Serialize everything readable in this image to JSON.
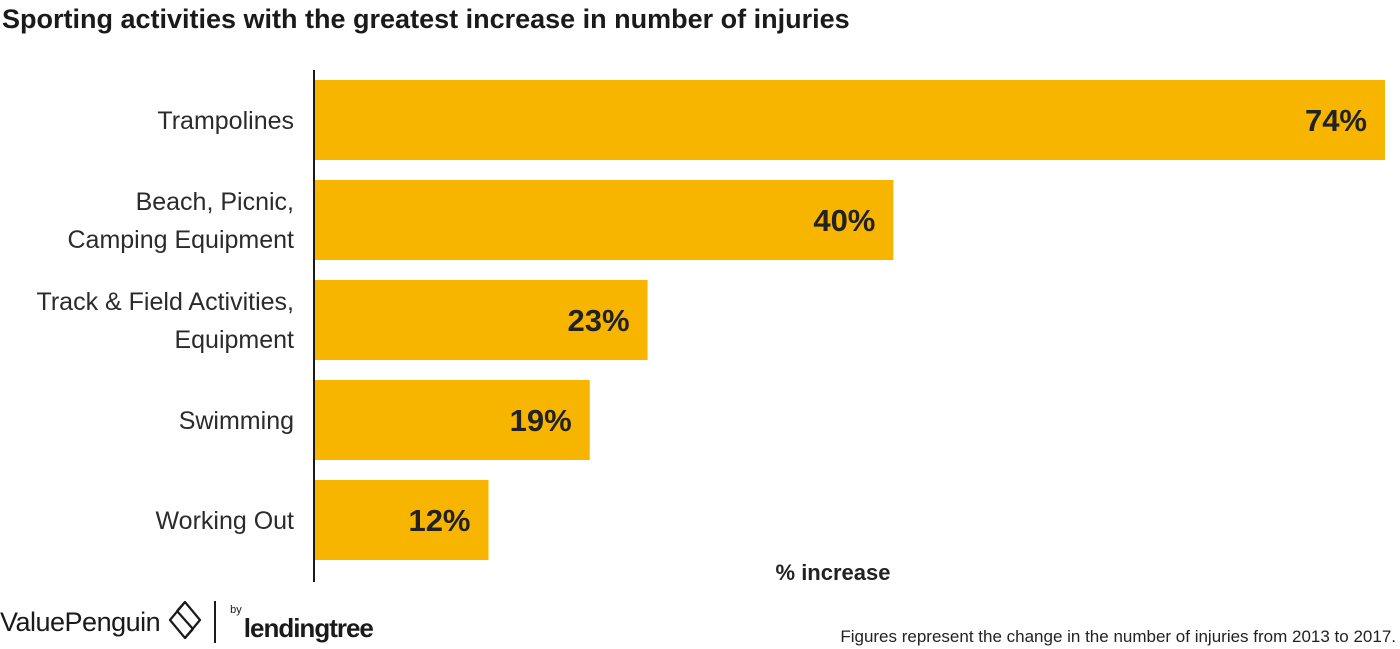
{
  "title": "Sporting activities with the greatest increase in number of injuries",
  "footnote": "Figures represent the change in the number of injuries from 2013 to 2017.",
  "brand": {
    "name": "ValuePenguin",
    "icon": "valuepenguin-logo-icon",
    "by": "by",
    "sub": "lendingtree"
  },
  "colors": {
    "bar": "#F7B500",
    "axis": "#1a1a1a",
    "text": "#222222"
  },
  "chart_data": {
    "type": "bar",
    "orientation": "horizontal",
    "title": "Sporting activities with the greatest increase in number of injuries",
    "xlabel": "% increase",
    "ylabel": "",
    "categories": [
      [
        "Trampolines"
      ],
      [
        "Beach, Picnic,",
        "Camping Equipment"
      ],
      [
        "Track & Field Activities,",
        "Equipment"
      ],
      [
        "Swimming"
      ],
      [
        "Working Out"
      ]
    ],
    "values": [
      74,
      40,
      23,
      19,
      12
    ],
    "data_labels": [
      "74%",
      "40%",
      "23%",
      "19%",
      "12%"
    ],
    "xlim": [
      0,
      74
    ]
  }
}
